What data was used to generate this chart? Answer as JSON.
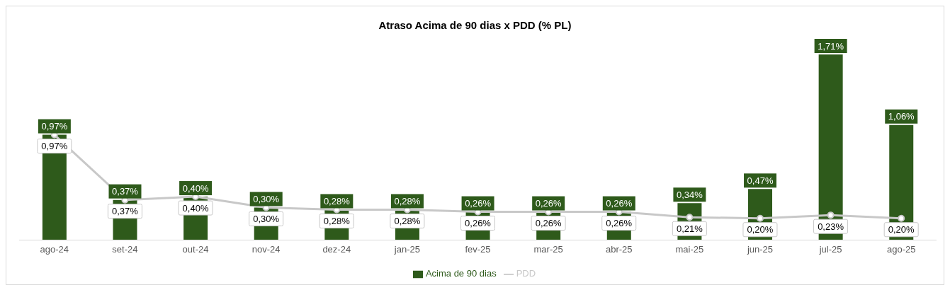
{
  "chart_data": {
    "type": "bar",
    "title": "Atraso Acima de 90 dias x PDD (% PL)",
    "categories": [
      "ago-24",
      "set-24",
      "out-24",
      "nov-24",
      "dez-24",
      "jan-25",
      "fev-25",
      "mar-25",
      "abr-25",
      "mai-25",
      "jun-25",
      "jul-25",
      "ago-25"
    ],
    "series": [
      {
        "name": "Acima de 90 dias",
        "color": "#2e5a1b",
        "values": [
          0.97,
          0.37,
          0.4,
          0.3,
          0.28,
          0.28,
          0.26,
          0.26,
          0.26,
          0.34,
          0.47,
          1.71,
          1.06
        ],
        "value_labels": [
          "0,97%",
          "0,37%",
          "0,40%",
          "0,30%",
          "0,28%",
          "0,28%",
          "0,26%",
          "0,26%",
          "0,26%",
          "0,34%",
          "0,47%",
          "1,71%",
          "1,06%"
        ]
      },
      {
        "name": "PDD",
        "type": "line",
        "color": "#c8c8c8",
        "marker": "circle",
        "values": [
          0.97,
          0.37,
          0.4,
          0.3,
          0.28,
          0.28,
          0.26,
          0.26,
          0.26,
          0.21,
          0.2,
          0.23,
          0.2
        ],
        "value_labels": [
          "0,97%",
          "0,37%",
          "0,40%",
          "0,30%",
          "0,28%",
          "0,28%",
          "0,26%",
          "0,26%",
          "0,26%",
          "0,21%",
          "0,20%",
          "0,23%",
          "0,20%"
        ]
      }
    ],
    "legend": "bottom",
    "grid": false
  }
}
